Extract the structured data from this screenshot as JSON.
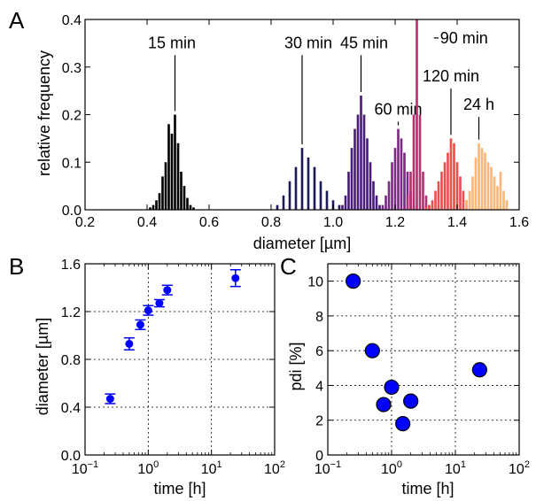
{
  "figure": {
    "panels": {
      "A": "A",
      "B": "B",
      "C": "C"
    }
  },
  "chart_data": [
    {
      "id": "A",
      "type": "bar",
      "xlabel": "diameter [µm]",
      "ylabel": "relative frequency",
      "xlim": [
        0.2,
        1.6
      ],
      "ylim": [
        0,
        0.4
      ],
      "xticks": [
        "0.2",
        "0.4",
        "0.6",
        "0.8",
        "1.0",
        "1.2",
        "1.4",
        "1.6"
      ],
      "yticks": [
        "0.0",
        "0.1",
        "0.2",
        "0.3",
        "0.4"
      ],
      "grid": false,
      "series": [
        {
          "name": "15 min",
          "color": "#000000",
          "label_pos": [
            0.48,
            0.34
          ],
          "x": [
            0.41,
            0.42,
            0.43,
            0.44,
            0.45,
            0.46,
            0.47,
            0.48,
            0.49,
            0.5,
            0.51,
            0.52,
            0.53,
            0.54,
            0.55
          ],
          "values": [
            0.005,
            0.01,
            0.02,
            0.035,
            0.07,
            0.1,
            0.18,
            0.16,
            0.2,
            0.14,
            0.08,
            0.05,
            0.025,
            0.01,
            0.005
          ]
        },
        {
          "name": "30 min",
          "color": "#1e1b5c",
          "label_pos": [
            0.92,
            0.34
          ],
          "x": [
            0.82,
            0.84,
            0.86,
            0.88,
            0.9,
            0.92,
            0.94,
            0.96,
            0.98,
            1.0,
            1.02
          ],
          "values": [
            0.01,
            0.03,
            0.06,
            0.09,
            0.13,
            0.11,
            0.09,
            0.06,
            0.04,
            0.02,
            0.01
          ]
        },
        {
          "name": "45 min",
          "color": "#4a1c7a",
          "label_pos": [
            1.1,
            0.34
          ],
          "x": [
            1.03,
            1.04,
            1.05,
            1.06,
            1.07,
            1.08,
            1.09,
            1.1,
            1.11,
            1.12,
            1.13,
            1.14,
            1.15
          ],
          "values": [
            0.01,
            0.03,
            0.08,
            0.13,
            0.17,
            0.2,
            0.24,
            0.2,
            0.15,
            0.1,
            0.06,
            0.03,
            0.01
          ]
        },
        {
          "name": "60 min",
          "color": "#7b2a83",
          "label_pos": [
            1.21,
            0.2
          ],
          "x": [
            1.16,
            1.17,
            1.18,
            1.19,
            1.2,
            1.21,
            1.22,
            1.23,
            1.24,
            1.25,
            1.26
          ],
          "values": [
            0.01,
            0.03,
            0.06,
            0.1,
            0.13,
            0.17,
            0.15,
            0.12,
            0.08,
            0.04,
            0.01
          ]
        },
        {
          "name": "90 min",
          "color": "#b1326f",
          "label_pos": [
            1.34,
            0.35
          ],
          "x": [
            1.24,
            1.25,
            1.26,
            1.27,
            1.28,
            1.29,
            1.3,
            1.31
          ],
          "values": [
            0.03,
            0.08,
            0.2,
            0.4,
            0.2,
            0.08,
            0.03,
            0.01
          ]
        },
        {
          "name": "120 min",
          "color": "#e8504c",
          "label_pos": [
            1.38,
            0.27
          ],
          "x": [
            1.3,
            1.31,
            1.32,
            1.33,
            1.34,
            1.35,
            1.36,
            1.37,
            1.38,
            1.39,
            1.4,
            1.41,
            1.42,
            1.43
          ],
          "values": [
            0.005,
            0.01,
            0.02,
            0.04,
            0.06,
            0.08,
            0.1,
            0.12,
            0.15,
            0.14,
            0.1,
            0.07,
            0.04,
            0.02
          ]
        },
        {
          "name": "24 h",
          "color": "#fbb67a",
          "label_pos": [
            1.47,
            0.21
          ],
          "x": [
            1.43,
            1.44,
            1.45,
            1.46,
            1.47,
            1.48,
            1.49,
            1.5,
            1.51,
            1.52,
            1.53,
            1.54,
            1.55,
            1.56
          ],
          "values": [
            0.02,
            0.04,
            0.07,
            0.11,
            0.14,
            0.13,
            0.12,
            0.1,
            0.09,
            0.07,
            0.05,
            0.08,
            0.04,
            0.02
          ]
        }
      ]
    },
    {
      "id": "B",
      "type": "scatter",
      "xscale": "log",
      "xlabel": "time [h]",
      "ylabel": "diameter [µm]",
      "xlim": [
        0.1,
        100
      ],
      "ylim": [
        0.0,
        1.6
      ],
      "xticks": [
        "10",
        "10",
        "10",
        "10"
      ],
      "xtick_exponents": [
        "−1",
        "0",
        "1",
        "2"
      ],
      "yticks": [
        "0.0",
        "0.4",
        "0.8",
        "1.2",
        "1.6"
      ],
      "grid": true,
      "color": "#0000ff",
      "x": [
        0.25,
        0.5,
        0.75,
        1.0,
        1.5,
        2.0,
        24.0
      ],
      "values": [
        0.47,
        0.93,
        1.09,
        1.21,
        1.27,
        1.38,
        1.48
      ],
      "errors": [
        0.04,
        0.05,
        0.04,
        0.04,
        0.03,
        0.04,
        0.07
      ]
    },
    {
      "id": "C",
      "type": "scatter",
      "xscale": "log",
      "xlabel": "time [h]",
      "ylabel": "pdi [%]",
      "xlim": [
        0.1,
        100
      ],
      "ylim": [
        0,
        11
      ],
      "xticks": [
        "10",
        "10",
        "10",
        "10"
      ],
      "xtick_exponents": [
        "−1",
        "0",
        "1",
        "2"
      ],
      "yticks": [
        "0",
        "2",
        "4",
        "6",
        "8",
        "10"
      ],
      "grid": true,
      "color": "#0000ff",
      "x": [
        0.25,
        0.5,
        0.75,
        1.0,
        1.5,
        2.0,
        24.0
      ],
      "values": [
        10.0,
        6.0,
        2.9,
        3.9,
        1.8,
        3.1,
        4.9
      ]
    }
  ]
}
